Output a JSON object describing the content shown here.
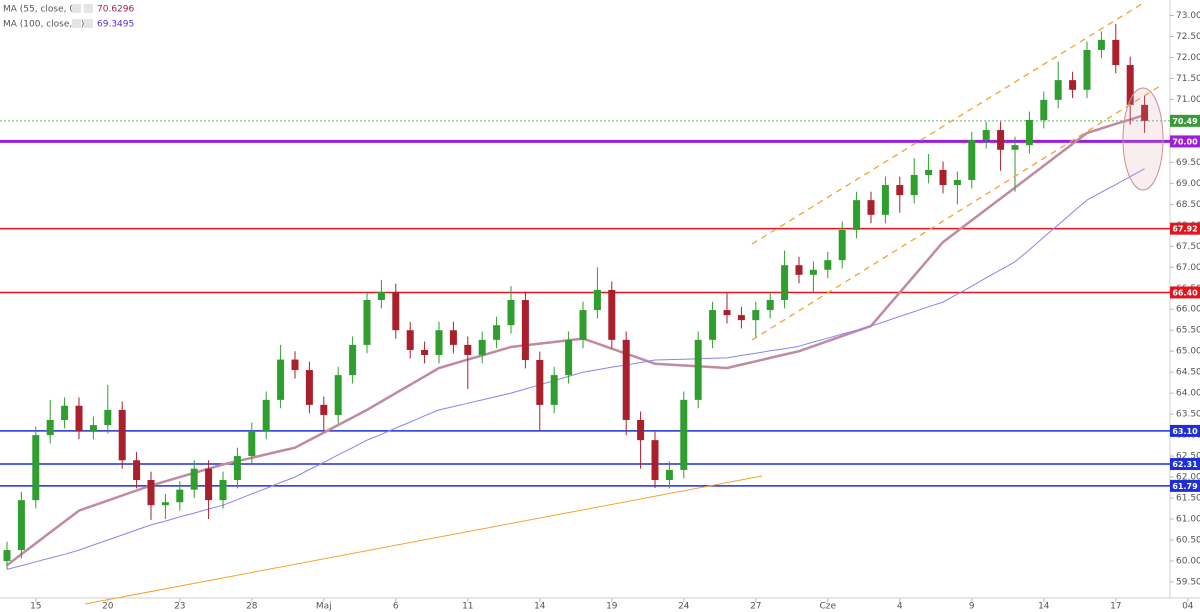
{
  "chart_data": {
    "type": "candlestick",
    "categories": [
      null,
      null,
      "15",
      null,
      null,
      null,
      null,
      "20",
      null,
      null,
      null,
      null,
      "23",
      null,
      null,
      null,
      null,
      "28",
      null,
      null,
      null,
      null,
      "Maj",
      null,
      null,
      null,
      null,
      "6",
      null,
      null,
      null,
      null,
      "11",
      null,
      null,
      null,
      null,
      "14",
      null,
      null,
      null,
      null,
      "19",
      null,
      null,
      null,
      null,
      "24",
      null,
      null,
      null,
      null,
      "27",
      null,
      null,
      null,
      null,
      "Cze",
      null,
      null,
      null,
      null,
      "4",
      null,
      null,
      null,
      null,
      "9",
      null,
      null,
      null,
      null,
      "14",
      null,
      null,
      null,
      null,
      "17",
      null,
      null,
      null,
      null,
      "04"
    ],
    "open": [
      60.0,
      60.26,
      61.45,
      63.0,
      63.36,
      63.7,
      63.1,
      63.24,
      63.6,
      62.4,
      61.93,
      61.33,
      61.4,
      61.7,
      62.2,
      61.45,
      61.93,
      62.5,
      63.1,
      63.84,
      64.8,
      64.55,
      63.72,
      63.48,
      64.43,
      65.15,
      66.22,
      66.41,
      65.5,
      65.03,
      64.91,
      65.5,
      65.15,
      64.91,
      65.27,
      65.62,
      66.22,
      64.79,
      63.72,
      64.43,
      65.27,
      65.98,
      66.46,
      65.27,
      63.36,
      62.88,
      61.93,
      62.17,
      63.84,
      65.27,
      65.98,
      65.86,
      65.74,
      65.98,
      66.22,
      67.05,
      66.82,
      66.94,
      67.17,
      67.89,
      68.6,
      68.25,
      68.96,
      68.72,
      69.2,
      69.32,
      68.96,
      69.08,
      70.03,
      70.27,
      69.8,
      69.91,
      70.51,
      70.99,
      71.46,
      71.23,
      72.18,
      72.42,
      71.82,
      70.87,
      null,
      null,
      null
    ],
    "high": [
      60.46,
      61.65,
      63.2,
      63.84,
      63.9,
      63.9,
      63.44,
      64.2,
      63.8,
      62.6,
      62.13,
      61.6,
      61.9,
      62.4,
      62.4,
      62.13,
      62.7,
      63.3,
      64.04,
      65.15,
      65.0,
      64.75,
      63.92,
      64.63,
      65.35,
      66.42,
      66.7,
      66.61,
      65.7,
      65.23,
      65.7,
      65.7,
      65.35,
      65.47,
      65.82,
      66.55,
      66.42,
      64.99,
      64.63,
      65.47,
      66.18,
      67.0,
      66.66,
      65.47,
      63.56,
      63.08,
      62.37,
      64.04,
      65.47,
      66.18,
      66.4,
      66.06,
      66.18,
      66.42,
      67.4,
      67.25,
      67.14,
      67.37,
      68.09,
      68.8,
      68.8,
      69.16,
      69.16,
      69.6,
      69.7,
      69.52,
      69.28,
      70.23,
      70.47,
      70.47,
      70.11,
      70.71,
      71.19,
      71.9,
      71.66,
      72.38,
      72.62,
      72.8,
      72.02,
      71.1,
      null,
      null,
      null
    ],
    "low": [
      59.8,
      60.06,
      61.25,
      62.8,
      63.16,
      62.9,
      62.9,
      63.04,
      62.2,
      61.73,
      60.98,
      61.0,
      61.2,
      61.5,
      61.0,
      61.25,
      61.73,
      62.3,
      62.9,
      63.64,
      64.35,
      63.52,
      63.1,
      63.28,
      64.23,
      64.95,
      66.02,
      65.3,
      64.83,
      64.71,
      64.71,
      64.95,
      64.1,
      64.71,
      65.07,
      65.42,
      64.59,
      63.1,
      63.52,
      64.23,
      65.07,
      65.78,
      65.07,
      63.0,
      62.2,
      61.74,
      61.73,
      61.97,
      63.64,
      65.07,
      65.66,
      65.54,
      65.3,
      65.78,
      66.02,
      66.62,
      66.4,
      66.74,
      66.97,
      67.69,
      68.05,
      68.05,
      68.3,
      68.52,
      69.0,
      68.76,
      68.5,
      68.88,
      69.83,
      69.3,
      68.8,
      69.71,
      70.31,
      70.79,
      71.03,
      71.03,
      71.98,
      71.62,
      70.4,
      70.2,
      null,
      null,
      null
    ],
    "close": [
      60.26,
      61.45,
      63.0,
      63.36,
      63.7,
      63.1,
      63.24,
      63.6,
      62.4,
      61.93,
      61.33,
      61.4,
      61.7,
      62.2,
      61.45,
      61.93,
      62.5,
      63.1,
      63.84,
      64.8,
      64.55,
      63.72,
      63.48,
      64.43,
      65.15,
      66.22,
      66.41,
      65.5,
      65.03,
      64.91,
      65.5,
      65.15,
      64.91,
      65.27,
      65.62,
      66.22,
      64.79,
      63.72,
      64.43,
      65.27,
      65.98,
      66.46,
      65.27,
      63.36,
      62.88,
      61.93,
      62.17,
      63.84,
      65.27,
      65.98,
      65.86,
      65.74,
      65.98,
      66.22,
      67.05,
      66.82,
      66.94,
      67.17,
      67.89,
      68.6,
      68.25,
      68.96,
      68.72,
      69.2,
      69.32,
      68.96,
      69.08,
      70.03,
      70.27,
      69.8,
      69.91,
      70.51,
      70.99,
      71.46,
      71.23,
      72.18,
      72.42,
      71.82,
      70.87,
      70.49,
      null,
      null,
      null
    ],
    "up_color": "#2f9e2f",
    "down_color": "#a91f2c",
    "indicators": [
      {
        "name": "MA (55, close, 0)",
        "value": 70.6296,
        "color": "#c08aa0",
        "label_color": "#a0204f",
        "width": 2.5,
        "values": [
          59.9,
          60.16,
          60.42,
          60.68,
          60.94,
          61.2,
          61.32,
          61.44,
          61.56,
          61.68,
          61.8,
          61.9,
          62.0,
          62.1,
          62.2,
          62.3,
          62.38,
          62.46,
          62.54,
          62.62,
          62.7,
          62.88,
          63.06,
          63.24,
          63.42,
          63.6,
          63.8,
          64.0,
          64.2,
          64.4,
          64.6,
          64.7,
          64.8,
          64.9,
          65.0,
          65.1,
          65.14,
          65.18,
          65.22,
          65.26,
          65.3,
          65.18,
          65.06,
          64.94,
          64.82,
          64.7,
          64.68,
          64.66,
          64.64,
          64.62,
          64.6,
          64.68,
          64.76,
          64.84,
          64.92,
          65.0,
          65.12,
          65.24,
          65.36,
          65.48,
          65.6,
          66.0,
          66.4,
          66.8,
          67.2,
          67.6,
          67.86,
          68.12,
          68.38,
          68.64,
          68.9,
          69.16,
          69.42,
          69.68,
          69.94,
          70.2,
          70.31,
          70.42,
          70.52,
          70.63,
          null,
          null,
          null
        ]
      },
      {
        "name": "MA (100, close, 0)",
        "value": 69.3495,
        "color": "#8d83ee",
        "label_color": "#5b2ed6",
        "width": 1,
        "values": [
          59.8,
          59.89,
          59.98,
          60.07,
          60.16,
          60.26,
          60.38,
          60.5,
          60.62,
          60.74,
          60.86,
          60.95,
          61.05,
          61.14,
          61.24,
          61.33,
          61.46,
          61.6,
          61.73,
          61.87,
          62.0,
          62.18,
          62.35,
          62.53,
          62.7,
          62.88,
          63.02,
          63.17,
          63.31,
          63.46,
          63.6,
          63.68,
          63.76,
          63.84,
          63.92,
          64.0,
          64.1,
          64.2,
          64.3,
          64.4,
          64.5,
          64.56,
          64.62,
          64.67,
          64.73,
          64.79,
          64.8,
          64.81,
          64.82,
          64.83,
          64.84,
          64.9,
          64.95,
          65.01,
          65.06,
          65.12,
          65.22,
          65.31,
          65.41,
          65.5,
          65.6,
          65.71,
          65.83,
          65.94,
          66.06,
          66.17,
          66.36,
          66.55,
          66.75,
          66.94,
          67.13,
          67.42,
          67.72,
          68.01,
          68.31,
          68.6,
          68.79,
          68.97,
          69.16,
          69.35,
          null,
          null,
          null
        ]
      }
    ],
    "levels": [
      {
        "value": 70.49,
        "color": "#3a9a3a",
        "style": "dotted"
      },
      {
        "value": 70,
        "label": "70.00",
        "color": "#9b1fd9",
        "style": "thick"
      },
      {
        "value": 67.92,
        "color": "#e2141e",
        "style": "solid"
      },
      {
        "value": 66.4,
        "label": "66.40",
        "color": "#e2141e",
        "style": "solid"
      },
      {
        "value": 63.1,
        "label": "63.10",
        "color": "#1f2fd8",
        "style": "solid"
      },
      {
        "value": 62.31,
        "color": "#1f2fd8",
        "style": "solid"
      },
      {
        "value": 61.79,
        "color": "#1f2fd8",
        "style": "solid"
      }
    ],
    "ylim": [
      59.07,
      73.37
    ],
    "yticks": [
      {
        "value": 59.5,
        "label": "59.50"
      },
      {
        "value": 60,
        "label": "60.00"
      },
      {
        "value": 60.5,
        "label": "60.50"
      },
      {
        "value": 61,
        "label": "61.00"
      },
      {
        "value": 61.5,
        "label": "61.50"
      },
      {
        "value": 62,
        "label": "62.00"
      },
      {
        "value": 62.5,
        "label": "62.50"
      },
      {
        "value": 63,
        "label": "63.00"
      },
      {
        "value": 63.5,
        "label": "63.50"
      },
      {
        "value": 64,
        "label": "64.00"
      },
      {
        "value": 64.5,
        "label": "64.50"
      },
      {
        "value": 65,
        "label": "65.00"
      },
      {
        "value": 65.5,
        "label": "65.50"
      },
      {
        "value": 66,
        "label": "66.00"
      },
      {
        "value": 66.5,
        "label": "66.50"
      },
      {
        "value": 67,
        "label": "67.00"
      },
      {
        "value": 67.5,
        "label": "67.50"
      },
      {
        "value": 68,
        "label": "68.00"
      },
      {
        "value": 68.5,
        "label": "68.50"
      },
      {
        "value": 69,
        "label": "69.00"
      },
      {
        "value": 69.5,
        "label": "69.50"
      },
      {
        "value": 70,
        "label": "70.00"
      },
      {
        "value": 70.5,
        "label": "70.50"
      },
      {
        "value": 71,
        "label": "71.00"
      },
      {
        "value": 71.5,
        "label": "71.50"
      },
      {
        "value": 72,
        "label": "72.00"
      },
      {
        "value": 72.5,
        "label": "72.50"
      },
      {
        "value": 73,
        "label": "73.00"
      }
    ]
  }
}
